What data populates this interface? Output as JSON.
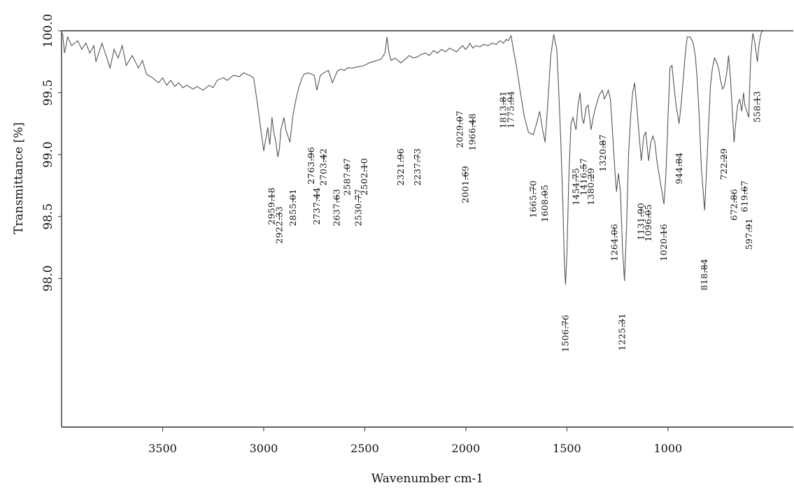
{
  "chart_data": {
    "type": "line",
    "xlabel": "Wavenumber cm-1",
    "ylabel": "Transmittance [%]",
    "x_reversed": true,
    "xlim": [
      4000,
      380
    ],
    "ylim": [
      96.8,
      100.0
    ],
    "xticks": [
      {
        "value": 3500,
        "label": "3500"
      },
      {
        "value": 3000,
        "label": "3000"
      },
      {
        "value": 2500,
        "label": "2500"
      },
      {
        "value": 2000,
        "label": "2000"
      },
      {
        "value": 1500,
        "label": "1500"
      },
      {
        "value": 1000,
        "label": "1000"
      }
    ],
    "yticks": [
      {
        "value": 100.0,
        "label": "100.0"
      },
      {
        "value": 99.5,
        "label": "99.5"
      },
      {
        "value": 99.0,
        "label": "99.0"
      },
      {
        "value": 98.5,
        "label": "98.5"
      },
      {
        "value": 98.0,
        "label": "98.0"
      }
    ],
    "series": [
      {
        "color": "#555555",
        "x": [
          3995,
          3985,
          3970,
          3950,
          3920,
          3900,
          3880,
          3860,
          3840,
          3830,
          3800,
          3780,
          3760,
          3740,
          3720,
          3700,
          3680,
          3650,
          3620,
          3600,
          3580,
          3550,
          3520,
          3500,
          3480,
          3460,
          3440,
          3420,
          3400,
          3380,
          3350,
          3330,
          3300,
          3270,
          3250,
          3230,
          3200,
          3180,
          3150,
          3120,
          3100,
          3070,
          3050,
          3030,
          3010,
          3000,
          2990,
          2980,
          2970,
          2959,
          2950,
          2940,
          2930,
          2922,
          2915,
          2900,
          2890,
          2870,
          2855,
          2840,
          2825,
          2810,
          2800,
          2780,
          2764,
          2750,
          2737,
          2720,
          2703,
          2680,
          2660,
          2637,
          2620,
          2600,
          2587,
          2560,
          2530,
          2502,
          2480,
          2460,
          2440,
          2420,
          2400,
          2390,
          2380,
          2370,
          2350,
          2322,
          2300,
          2280,
          2260,
          2238,
          2220,
          2200,
          2180,
          2160,
          2140,
          2120,
          2100,
          2080,
          2060,
          2045,
          2029,
          2015,
          2002,
          1990,
          1980,
          1966,
          1950,
          1930,
          1910,
          1890,
          1870,
          1850,
          1830,
          1814,
          1800,
          1790,
          1776,
          1765,
          1750,
          1730,
          1710,
          1690,
          1666,
          1650,
          1635,
          1620,
          1608,
          1595,
          1580,
          1565,
          1550,
          1540,
          1530,
          1520,
          1513,
          1507,
          1500,
          1490,
          1480,
          1470,
          1455,
          1445,
          1435,
          1425,
          1417,
          1405,
          1395,
          1380,
          1370,
          1355,
          1340,
          1325,
          1321,
          1315,
          1305,
          1295,
          1285,
          1275,
          1264,
          1255,
          1245,
          1235,
          1225,
          1215,
          1205,
          1195,
          1185,
          1175,
          1165,
          1155,
          1145,
          1132,
          1120,
          1110,
          1096,
          1085,
          1075,
          1065,
          1055,
          1045,
          1035,
          1020,
          1010,
          1000,
          990,
          980,
          970,
          960,
          945,
          935,
          925,
          915,
          905,
          890,
          875,
          865,
          855,
          845,
          835,
          819,
          810,
          800,
          790,
          780,
          770,
          760,
          750,
          740,
          730,
          722,
          710,
          700,
          690,
          680,
          673,
          665,
          655,
          645,
          635,
          626,
          620,
          610,
          600,
          598,
          590,
          580,
          570,
          558,
          550,
          540,
          530,
          520,
          510,
          500,
          490,
          480,
          470,
          460,
          450,
          440,
          430,
          420,
          410,
          400,
          390,
          382
        ],
        "y": [
          99.98,
          99.82,
          99.95,
          99.88,
          99.92,
          99.85,
          99.9,
          99.82,
          99.88,
          99.75,
          99.9,
          99.8,
          99.7,
          99.85,
          99.78,
          99.88,
          99.72,
          99.8,
          99.7,
          99.76,
          99.65,
          99.62,
          99.58,
          99.62,
          99.56,
          99.6,
          99.55,
          99.58,
          99.54,
          99.56,
          99.53,
          99.55,
          99.52,
          99.56,
          99.54,
          99.6,
          99.62,
          99.6,
          99.64,
          99.63,
          99.66,
          99.64,
          99.62,
          99.4,
          99.15,
          99.03,
          99.12,
          99.22,
          99.08,
          99.3,
          99.18,
          99.1,
          98.98,
          99.05,
          99.2,
          99.3,
          99.2,
          99.1,
          99.32,
          99.45,
          99.55,
          99.62,
          99.65,
          99.66,
          99.65,
          99.64,
          99.52,
          99.64,
          99.66,
          99.68,
          99.58,
          99.67,
          99.69,
          99.68,
          99.7,
          99.7,
          99.71,
          99.72,
          99.74,
          99.75,
          99.76,
          99.77,
          99.82,
          99.95,
          99.82,
          99.76,
          99.78,
          99.74,
          99.77,
          99.8,
          99.78,
          99.79,
          99.81,
          99.82,
          99.8,
          99.84,
          99.82,
          99.85,
          99.83,
          99.86,
          99.84,
          99.83,
          99.86,
          99.88,
          99.85,
          99.87,
          99.9,
          99.86,
          99.88,
          99.87,
          99.89,
          99.88,
          99.9,
          99.89,
          99.92,
          99.9,
          99.93,
          99.92,
          99.96,
          99.85,
          99.72,
          99.5,
          99.3,
          99.18,
          99.16,
          99.25,
          99.35,
          99.2,
          99.1,
          99.4,
          99.8,
          99.97,
          99.85,
          99.5,
          99.1,
          98.6,
          98.15,
          97.95,
          98.2,
          98.85,
          99.25,
          99.3,
          99.2,
          99.4,
          99.5,
          99.3,
          99.25,
          99.38,
          99.4,
          99.2,
          99.3,
          99.4,
          99.48,
          99.52,
          99.5,
          99.45,
          99.48,
          99.52,
          99.45,
          99.2,
          98.9,
          98.7,
          98.85,
          98.7,
          98.25,
          97.98,
          98.4,
          99.0,
          99.3,
          99.5,
          99.58,
          99.4,
          99.2,
          98.95,
          99.15,
          99.18,
          98.95,
          99.1,
          99.15,
          99.1,
          98.95,
          98.85,
          98.75,
          98.6,
          98.85,
          99.3,
          99.7,
          99.72,
          99.55,
          99.4,
          99.25,
          99.4,
          99.6,
          99.8,
          99.95,
          99.95,
          99.9,
          99.8,
          99.6,
          99.3,
          98.9,
          98.55,
          98.85,
          99.2,
          99.55,
          99.7,
          99.78,
          99.75,
          99.7,
          99.6,
          99.53,
          99.55,
          99.65,
          99.8,
          99.6,
          99.3,
          99.1,
          99.25,
          99.4,
          99.45,
          99.35,
          99.5,
          99.4,
          99.35,
          99.3,
          99.45,
          99.8,
          99.98,
          99.9,
          99.75,
          99.88,
          99.98,
          100.0,
          100.0,
          100.0,
          100.0,
          100.0,
          100.0,
          100.0,
          100.0,
          100.0,
          100.0,
          100.0,
          100.0,
          100.0,
          100.0,
          100.0,
          100.0
        ]
      }
    ],
    "peak_labels": [
      "2959.18",
      "2922.33",
      "2855.01",
      "2763.96",
      "2737.44",
      "2703.42",
      "2637.63",
      "2587.07",
      "2530.77",
      "2502.10",
      "2321.96",
      "2237.73",
      "2029.07",
      "2001.69",
      "1966.48",
      "1813.81",
      "1775.94",
      "1665.70",
      "1608.05",
      "1506.76",
      "1454.75",
      "1416.57",
      "1380.29",
      "1320.87",
      "1264.06",
      "1225.31",
      "1131.90",
      "1096.05",
      "1020.16",
      "944.84",
      "818.84",
      "722.29",
      "672.86",
      "619.67",
      "597.91",
      "558.13"
    ],
    "grid": false
  }
}
